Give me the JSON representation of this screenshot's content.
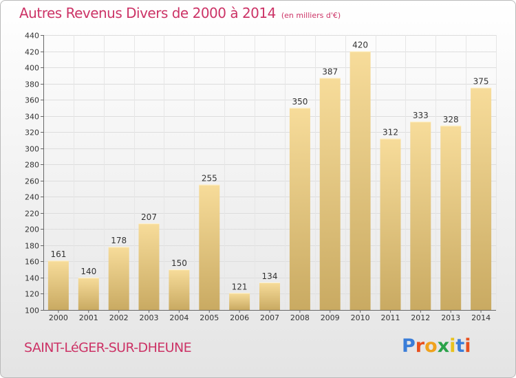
{
  "title": "Autres Revenus Divers de 2000 à 2014",
  "subtitle": "(en milliers d'€)",
  "place_label": "SAINT-LéGER-SUR-DHEUNE",
  "brand": {
    "letters": [
      "P",
      "r",
      "o",
      "x",
      "i",
      "t",
      "i"
    ],
    "colors": [
      "#3a7dd8",
      "#e8501e",
      "#f0a21d",
      "#2aa24a",
      "#e8c21e",
      "#3a7dd8",
      "#e8501e"
    ]
  },
  "colors": {
    "title": "#cc3366",
    "bar_light": "#f7dc9a",
    "bar_dark": "#c9aa62",
    "gridline": "#dddddd"
  },
  "chart_data": {
    "type": "bar",
    "title": "Autres Revenus Divers de 2000 à 2014",
    "subtitle": "(en milliers d'€)",
    "categories": [
      "2000",
      "2001",
      "2002",
      "2003",
      "2004",
      "2005",
      "2006",
      "2007",
      "2008",
      "2009",
      "2010",
      "2011",
      "2012",
      "2013",
      "2014"
    ],
    "values": [
      161,
      140,
      178,
      207,
      150,
      255,
      121,
      134,
      350,
      387,
      420,
      312,
      333,
      328,
      375
    ],
    "ylim": [
      100,
      440
    ],
    "yticks": [
      100,
      120,
      140,
      160,
      180,
      200,
      220,
      240,
      260,
      280,
      300,
      320,
      340,
      360,
      380,
      400,
      420,
      440
    ],
    "grid": true,
    "data_labels": true
  }
}
